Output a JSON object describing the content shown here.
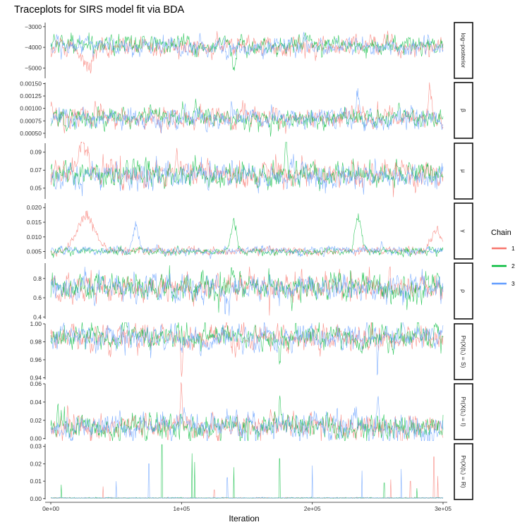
{
  "chart_data": {
    "type": "line",
    "title": "Traceplots for SIRS model fit via BDA",
    "xlabel": "Iteration",
    "x_range": [
      0,
      300000
    ],
    "x_ticks": [
      0,
      100000,
      200000,
      300000
    ],
    "x_tick_labels": [
      "0e+00",
      "1e+05",
      "2e+05",
      "3e+05"
    ],
    "legend": {
      "title": "Chain",
      "placement": "right",
      "entries": [
        {
          "label": "1",
          "color": "#F8766D"
        },
        {
          "label": "2",
          "color": "#00BA38"
        },
        {
          "label": "3",
          "color": "#619CFF"
        }
      ]
    },
    "panels": [
      {
        "strip": "log−posterior",
        "ylim": [
          -5500,
          -2800
        ],
        "y_ticks": [
          -3000,
          -4000,
          -5000
        ],
        "y_tick_labels": [
          "−3000",
          "−4000",
          "−5000"
        ],
        "series_summary": [
          {
            "name": "1",
            "mean": -3950,
            "spread": 230,
            "excursions": [
              [
                28000,
                -5300,
                6000
              ]
            ]
          },
          {
            "name": "2",
            "mean": -3900,
            "spread": 220,
            "excursions": [
              [
                140000,
                -5200,
                2000
              ]
            ]
          },
          {
            "name": "3",
            "mean": -3950,
            "spread": 220,
            "excursions": []
          }
        ]
      },
      {
        "strip": "β",
        "ylim": [
          0.0004,
          0.00152
        ],
        "y_ticks": [
          0.0005,
          0.00075,
          0.001,
          0.00125,
          0.0015
        ],
        "y_tick_labels": [
          "0.00050",
          "0.00075",
          "0.00100",
          "0.00125",
          "0.00150"
        ],
        "series_summary": [
          {
            "name": "1",
            "mean": 0.00082,
            "spread": 0.0001,
            "excursions": [
              [
                290000,
                0.0014,
                1500
              ]
            ]
          },
          {
            "name": "2",
            "mean": 0.00082,
            "spread": 0.0001,
            "excursions": []
          },
          {
            "name": "3",
            "mean": 0.0008,
            "spread": 0.0001,
            "excursions": [
              [
                235000,
                0.00145,
                1500
              ]
            ]
          }
        ]
      },
      {
        "strip": "μ",
        "ylim": [
          0.038,
          0.1
        ],
        "y_ticks": [
          0.05,
          0.07,
          0.09
        ],
        "y_tick_labels": [
          "0.05",
          "0.07",
          "0.09"
        ],
        "series_summary": [
          {
            "name": "1",
            "mean": 0.066,
            "spread": 0.007,
            "excursions": [
              [
                25000,
                0.093,
                5000
              ]
            ]
          },
          {
            "name": "2",
            "mean": 0.065,
            "spread": 0.007,
            "excursions": [
              [
                180000,
                0.095,
                1500
              ]
            ]
          },
          {
            "name": "3",
            "mean": 0.064,
            "spread": 0.007,
            "excursions": []
          }
        ]
      },
      {
        "strip": "γ",
        "ylim": [
          0.0025,
          0.0215
        ],
        "y_ticks": [
          0.005,
          0.01,
          0.015,
          0.02
        ],
        "y_tick_labels": [
          "0.005",
          "0.010",
          "0.015",
          "0.020"
        ],
        "series_summary": [
          {
            "name": "1",
            "mean": 0.0052,
            "spread": 0.0007,
            "excursions": [
              [
                27000,
                0.0195,
                9000
              ],
              [
                295000,
                0.013,
                6000
              ]
            ]
          },
          {
            "name": "2",
            "mean": 0.005,
            "spread": 0.0007,
            "excursions": [
              [
                140000,
                0.016,
                3000
              ],
              [
                235000,
                0.018,
                3500
              ]
            ]
          },
          {
            "name": "3",
            "mean": 0.0053,
            "spread": 0.0007,
            "excursions": [
              [
                65000,
                0.015,
                3000
              ]
            ]
          }
        ]
      },
      {
        "strip": "ρ",
        "ylim": [
          0.38,
          0.96
        ],
        "y_ticks": [
          0.4,
          0.6,
          0.8
        ],
        "y_tick_labels": [
          "0.4",
          "0.6",
          "0.8"
        ],
        "series_summary": [
          {
            "name": "1",
            "mean": 0.71,
            "spread": 0.07,
            "excursions": []
          },
          {
            "name": "2",
            "mean": 0.71,
            "spread": 0.07,
            "excursions": [
              [
                275000,
                0.52,
                3000
              ]
            ]
          },
          {
            "name": "3",
            "mean": 0.7,
            "spread": 0.07,
            "excursions": [
              [
                135000,
                0.45,
                2000
              ]
            ]
          }
        ]
      },
      {
        "strip": "Pr(X(t₁) = S)",
        "ylim": [
          0.938,
          1.0
        ],
        "y_ticks": [
          0.94,
          0.96,
          0.98,
          1.0
        ],
        "y_tick_labels": [
          "0.94",
          "0.96",
          "0.98",
          "1.00"
        ],
        "series_summary": [
          {
            "name": "1",
            "mean": 0.985,
            "spread": 0.007,
            "excursions": [
              [
                100000,
                0.945,
                1000
              ]
            ]
          },
          {
            "name": "2",
            "mean": 0.986,
            "spread": 0.007,
            "excursions": [
              [
                175000,
                0.942,
                1000
              ]
            ]
          },
          {
            "name": "3",
            "mean": 0.985,
            "spread": 0.007,
            "excursions": [
              [
                250000,
                0.945,
                1000
              ]
            ]
          }
        ]
      },
      {
        "strip": "Pr(X(t₁) = I)",
        "ylim": [
          -0.001,
          0.06
        ],
        "y_ticks": [
          0.0,
          0.02,
          0.04,
          0.06
        ],
        "y_tick_labels": [
          "0.00",
          "0.02",
          "0.04",
          "0.06"
        ],
        "series_summary": [
          {
            "name": "1",
            "mean": 0.013,
            "spread": 0.007,
            "excursions": [
              [
                100000,
                0.058,
                1000
              ]
            ]
          },
          {
            "name": "2",
            "mean": 0.013,
            "spread": 0.007,
            "excursions": [
              [
                175000,
                0.055,
                1000
              ]
            ]
          },
          {
            "name": "3",
            "mean": 0.013,
            "spread": 0.007,
            "excursions": [
              [
                250000,
                0.053,
                1000
              ]
            ]
          }
        ]
      },
      {
        "strip": "Pr(X(t₁) = R)",
        "ylim": [
          -0.0005,
          0.0315
        ],
        "y_ticks": [
          0.0,
          0.01,
          0.02,
          0.03
        ],
        "y_tick_labels": [
          "0.00",
          "0.01",
          "0.02",
          "0.03"
        ],
        "series_summary": [
          {
            "name": "1",
            "mean": 0.0002,
            "spread": 0.0002,
            "spikes": [
              [
                40000,
                0.007
              ],
              [
                125000,
                0.005
              ],
              [
                260000,
                0.011
              ],
              [
                275000,
                0.01
              ],
              [
                293000,
                0.024
              ],
              [
                296000,
                0.013
              ]
            ]
          },
          {
            "name": "2",
            "mean": 0.0002,
            "spread": 0.0002,
            "spikes": [
              [
                8000,
                0.008
              ],
              [
                85000,
                0.031
              ],
              [
                108000,
                0.026
              ],
              [
                110000,
                0.021
              ],
              [
                140000,
                0.018
              ],
              [
                175000,
                0.023
              ],
              [
                255000,
                0.009
              ],
              [
                280000,
                0.006
              ]
            ]
          },
          {
            "name": "3",
            "mean": 0.0002,
            "spread": 0.0002,
            "spikes": [
              [
                50000,
                0.01
              ],
              [
                75000,
                0.02
              ],
              [
                135000,
                0.012
              ],
              [
                200000,
                0.019
              ],
              [
                238000,
                0.016
              ],
              [
                268000,
                0.017
              ]
            ]
          }
        ]
      }
    ]
  }
}
